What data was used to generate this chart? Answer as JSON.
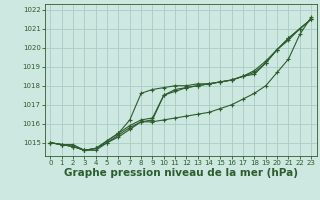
{
  "bg_color": "#cce8e0",
  "grid_color": "#aaccC4",
  "line_color": "#2d5c2d",
  "xlabel": "Graphe pression niveau de la mer (hPa)",
  "xlabel_fontsize": 7.5,
  "ylim": [
    1014.3,
    1022.3
  ],
  "xlim": [
    -0.5,
    23.5
  ],
  "yticks": [
    1015,
    1016,
    1017,
    1018,
    1019,
    1020,
    1021,
    1022
  ],
  "xticks": [
    0,
    1,
    2,
    3,
    4,
    5,
    6,
    7,
    8,
    9,
    10,
    11,
    12,
    13,
    14,
    15,
    16,
    17,
    18,
    19,
    20,
    21,
    22,
    23
  ],
  "series": [
    [
      1015.0,
      1014.9,
      1014.9,
      1014.6,
      1014.7,
      1015.0,
      1015.4,
      1015.8,
      1016.1,
      1016.1,
      1016.2,
      1016.3,
      1016.4,
      1016.5,
      1016.6,
      1016.8,
      1017.0,
      1017.3,
      1017.6,
      1018.0,
      1018.7,
      1019.4,
      1020.7,
      1021.6
    ],
    [
      1015.0,
      1014.9,
      1014.8,
      1014.6,
      1014.7,
      1015.1,
      1015.5,
      1016.2,
      1017.6,
      1017.8,
      1017.9,
      1018.0,
      1018.0,
      1018.1,
      1018.1,
      1018.2,
      1018.3,
      1018.5,
      1018.6,
      1019.2,
      1019.9,
      1020.5,
      1021.0,
      1021.5
    ],
    [
      1015.0,
      1014.9,
      1014.8,
      1014.6,
      1014.7,
      1015.1,
      1015.5,
      1015.9,
      1016.2,
      1016.3,
      1017.5,
      1017.8,
      1017.9,
      1018.0,
      1018.1,
      1018.2,
      1018.3,
      1018.5,
      1018.7,
      1019.2,
      1019.9,
      1020.5,
      1021.0,
      1021.5
    ],
    [
      1015.0,
      1014.9,
      1014.8,
      1014.6,
      1014.6,
      1015.0,
      1015.3,
      1015.7,
      1016.1,
      1016.2,
      1017.5,
      1017.7,
      1017.9,
      1018.0,
      1018.1,
      1018.2,
      1018.3,
      1018.5,
      1018.8,
      1019.3,
      1019.9,
      1020.4,
      1021.0,
      1021.5
    ]
  ]
}
